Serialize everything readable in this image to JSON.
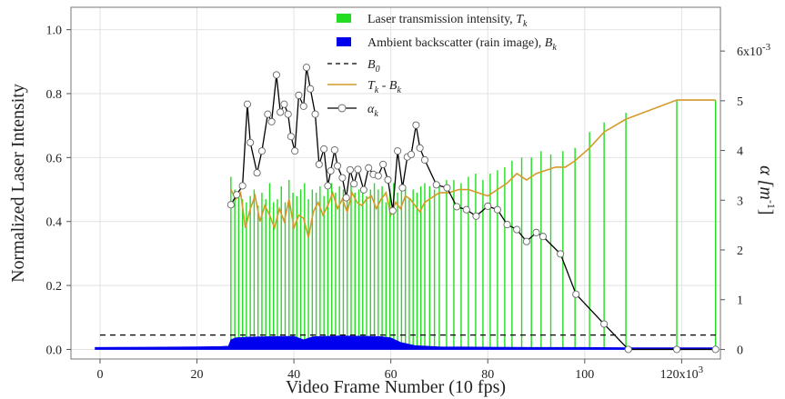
{
  "chart_data": {
    "type": "bar+line",
    "xlabel": "Video Frame Number (10 fps)",
    "ylabel": "Normalized Laser Intensity",
    "y2label": "α [m",
    "y2label_sup": "-1",
    "y2label_end": "]",
    "x_axis": {
      "range": [
        -6,
        128
      ],
      "ticks": [
        0,
        20,
        40,
        60,
        80,
        100,
        120
      ],
      "tick_labels": [
        "0",
        "20",
        "40",
        "60",
        "80",
        "100",
        "120x10"
      ],
      "last_label_base": "120x10",
      "last_label_sup": "3"
    },
    "y_axis": {
      "range": [
        -0.03,
        1.07
      ],
      "ticks": [
        0,
        0.2,
        0.4,
        0.6,
        0.8,
        1.0
      ],
      "tick_labels": [
        "0.0",
        "0.2",
        "0.4",
        "0.6",
        "0.8",
        "1.0"
      ]
    },
    "y2_axis": {
      "range": [
        -0.000193,
        0.00688
      ],
      "ticks": [
        0,
        0.001,
        0.002,
        0.003,
        0.004,
        0.005,
        0.006
      ],
      "tick_labels": [
        "0",
        "1",
        "2",
        "3",
        "4",
        "5",
        "6x10"
      ],
      "last_label_base": "6x10",
      "last_label_sup": "-3"
    },
    "grid": true,
    "legend_position": "top-center",
    "legend": [
      {
        "label": "Laser transmission intensity, ",
        "italic": "T",
        "sub": "k",
        "kind": "bar",
        "color": "#22dd22"
      },
      {
        "label": "Ambient backscatter (rain image), ",
        "italic": "B",
        "sub": "k",
        "kind": "bar",
        "color": "#0000ee"
      },
      {
        "label": "",
        "italic": "B",
        "sub": "0",
        "kind": "dashed",
        "color": "#000000"
      },
      {
        "label": "",
        "italic": "T",
        "sub": "k",
        "mid": " - ",
        "italic2": "B",
        "sub2": "k",
        "kind": "line",
        "color": "#d49a2a"
      },
      {
        "label": "",
        "italic": "α",
        "sub": "k",
        "kind": "line-marker",
        "color": "#000000"
      }
    ],
    "colors": {
      "transmission": "#22dd22",
      "backscatter": "#0000ee",
      "difference": "#d49a2a",
      "alpha": "#000000",
      "b0": "#000000"
    },
    "b0_value": 0.045,
    "transmission": {
      "x": [
        27,
        27.8,
        28.6,
        29.4,
        30.2,
        31,
        31.8,
        32.6,
        33.4,
        34.2,
        35,
        35.8,
        36.6,
        37.4,
        38.2,
        39,
        39.8,
        40.6,
        41.4,
        42.2,
        43,
        43.8,
        44.6,
        45.4,
        46.2,
        47,
        47.8,
        48.6,
        49.4,
        50.2,
        51,
        51.8,
        52.6,
        53.4,
        54.2,
        55,
        55.8,
        56.6,
        57.4,
        58.2,
        59,
        59.8,
        60.6,
        61.4,
        62.2,
        63,
        63.8,
        64.6,
        65.4,
        66.2,
        67,
        68,
        69,
        70,
        71.5,
        73,
        74.5,
        76,
        77.5,
        79,
        80.5,
        82,
        83.5,
        85,
        87,
        89,
        91,
        93,
        95.5,
        98,
        101,
        104,
        108.5,
        119,
        127
      ],
      "values": [
        0.54,
        0.5,
        0.49,
        0.47,
        0.46,
        0.48,
        0.5,
        0.45,
        0.49,
        0.47,
        0.52,
        0.46,
        0.47,
        0.51,
        0.46,
        0.53,
        0.49,
        0.48,
        0.5,
        0.52,
        0.47,
        0.5,
        0.49,
        0.51,
        0.48,
        0.5,
        0.52,
        0.49,
        0.51,
        0.5,
        0.47,
        0.52,
        0.49,
        0.5,
        0.51,
        0.48,
        0.5,
        0.52,
        0.5,
        0.51,
        0.46,
        0.5,
        0.52,
        0.49,
        0.5,
        0.51,
        0.47,
        0.5,
        0.49,
        0.51,
        0.52,
        0.51,
        0.5,
        0.52,
        0.53,
        0.53,
        0.52,
        0.54,
        0.55,
        0.53,
        0.55,
        0.56,
        0.57,
        0.59,
        0.6,
        0.6,
        0.62,
        0.61,
        0.62,
        0.63,
        0.68,
        0.71,
        0.74,
        0.78,
        0.78
      ]
    },
    "backscatter": {
      "x": [
        -1,
        10,
        20,
        25,
        26.5,
        27,
        28,
        30,
        35,
        40,
        42,
        44,
        50,
        55,
        58,
        60,
        62,
        65,
        70,
        80,
        90,
        100,
        110,
        120,
        127
      ],
      "values": [
        0.006,
        0.007,
        0.008,
        0.009,
        0.01,
        0.03,
        0.036,
        0.038,
        0.04,
        0.041,
        0.03,
        0.04,
        0.042,
        0.041,
        0.04,
        0.036,
        0.022,
        0.012,
        0.008,
        0.007,
        0.006,
        0.006,
        0.005,
        0.005,
        0.005
      ]
    },
    "difference": {
      "x": [
        27,
        28,
        29,
        30,
        31,
        32,
        33,
        34,
        35,
        36,
        37,
        38,
        39,
        40,
        41,
        42,
        43,
        44,
        45,
        46,
        47,
        48,
        49,
        50,
        51,
        52,
        53,
        54,
        55,
        56,
        57,
        58,
        59,
        60,
        61,
        62,
        63,
        64,
        65,
        66,
        67,
        68,
        70,
        72,
        74,
        76,
        78,
        80,
        82,
        84,
        86,
        88,
        90,
        92,
        94,
        96,
        98,
        101,
        104,
        108.5,
        119,
        127
      ],
      "values": [
        0.5,
        0.47,
        0.49,
        0.38,
        0.44,
        0.48,
        0.4,
        0.45,
        0.42,
        0.38,
        0.44,
        0.4,
        0.47,
        0.38,
        0.42,
        0.41,
        0.35,
        0.43,
        0.46,
        0.42,
        0.45,
        0.49,
        0.44,
        0.47,
        0.43,
        0.49,
        0.46,
        0.45,
        0.47,
        0.48,
        0.44,
        0.47,
        0.49,
        0.42,
        0.46,
        0.44,
        0.48,
        0.47,
        0.45,
        0.43,
        0.46,
        0.47,
        0.49,
        0.49,
        0.5,
        0.5,
        0.49,
        0.48,
        0.5,
        0.52,
        0.55,
        0.53,
        0.55,
        0.56,
        0.57,
        0.57,
        0.59,
        0.63,
        0.68,
        0.72,
        0.78,
        0.78
      ]
    },
    "alpha": {
      "x": [
        27,
        28.2,
        29.4,
        30.4,
        31,
        32.4,
        33.4,
        34.6,
        35.4,
        36.4,
        37.2,
        38,
        38.8,
        39.4,
        40.2,
        41,
        42,
        42.6,
        43.4,
        44.4,
        45.2,
        46.2,
        47,
        47.6,
        48.4,
        49,
        50,
        50.8,
        51.6,
        52.4,
        53.2,
        54.4,
        55.4,
        56.4,
        57.4,
        58.4,
        59.4,
        60.4,
        61.4,
        62.4,
        63.4,
        64.2,
        65.2,
        66,
        67,
        69.4,
        71.6,
        73.6,
        75.6,
        77.6,
        80,
        82,
        84,
        86,
        88,
        90,
        91.4,
        95,
        98.2,
        104,
        109,
        119,
        127
      ],
      "values": [
        0.00291,
        0.00311,
        0.00329,
        0.00493,
        0.00416,
        0.00355,
        0.00399,
        0.00473,
        0.00458,
        0.00552,
        0.00477,
        0.00493,
        0.00473,
        0.00428,
        0.00399,
        0.00511,
        0.00489,
        0.00567,
        0.00524,
        0.00473,
        0.00372,
        0.00403,
        0.00329,
        0.00359,
        0.00401,
        0.00369,
        0.00345,
        0.00305,
        0.00361,
        0.00333,
        0.00362,
        0.00321,
        0.00365,
        0.00352,
        0.00349,
        0.00372,
        0.00341,
        0.00279,
        0.00399,
        0.00325,
        0.00387,
        0.00392,
        0.00451,
        0.00405,
        0.00381,
        0.00331,
        0.00325,
        0.00287,
        0.00281,
        0.00268,
        0.00288,
        0.00281,
        0.00251,
        0.00241,
        0.00217,
        0.00235,
        0.00227,
        0.00192,
        0.00111,
        0.00051,
        0,
        0,
        0
      ]
    }
  }
}
